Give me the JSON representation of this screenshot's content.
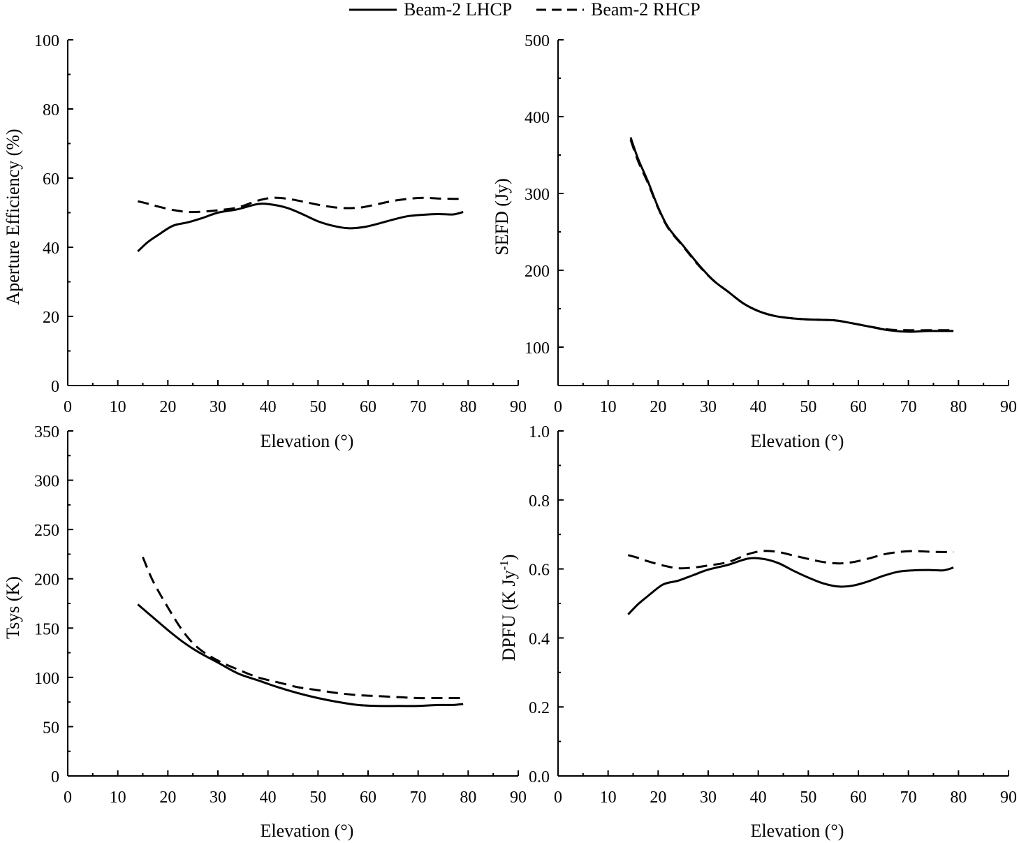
{
  "legend": {
    "series": [
      {
        "name": "Beam-2 LHCP",
        "style": "solid"
      },
      {
        "name": "Beam-2 RHCP",
        "style": "dashed"
      }
    ]
  },
  "chart_data": [
    {
      "id": "aperture-efficiency",
      "type": "line",
      "title": "",
      "xlabel": "Elevation (°)",
      "ylabel": "Aperture Efficiency (%)",
      "xlim": [
        0,
        90
      ],
      "ylim": [
        0,
        100
      ],
      "xticks": [
        0,
        10,
        20,
        30,
        40,
        50,
        60,
        70,
        80,
        90
      ],
      "yticks": [
        0,
        20,
        40,
        60,
        80,
        100
      ],
      "x": [
        14,
        16,
        18,
        21,
        24,
        27,
        30,
        34,
        38,
        41,
        44,
        47,
        50,
        53,
        56,
        59,
        62,
        65,
        68,
        71,
        74,
        77,
        79
      ],
      "series": [
        {
          "name": "Beam-2 LHCP",
          "style": "solid",
          "values": [
            38.8,
            41.5,
            43.5,
            46.2,
            47.2,
            48.5,
            50.0,
            51.0,
            52.5,
            52.3,
            51.3,
            49.5,
            47.5,
            46.2,
            45.5,
            45.8,
            46.8,
            48.0,
            49.0,
            49.4,
            49.6,
            49.5,
            50.2
          ]
        },
        {
          "name": "Beam-2 RHCP",
          "style": "dashed",
          "values": [
            53.3,
            52.6,
            51.8,
            50.8,
            50.2,
            50.3,
            50.7,
            51.5,
            53.5,
            54.3,
            54.0,
            53.2,
            52.3,
            51.6,
            51.3,
            51.6,
            52.5,
            53.4,
            54.0,
            54.3,
            54.1,
            54.0,
            54.0
          ]
        }
      ]
    },
    {
      "id": "sefd",
      "type": "line",
      "title": "",
      "xlabel": "Elevation (°)",
      "ylabel": "SEFD (Jy)",
      "xlim": [
        0,
        90
      ],
      "ylim": [
        50,
        500
      ],
      "xticks": [
        0,
        10,
        20,
        30,
        40,
        50,
        60,
        70,
        80,
        90
      ],
      "yticks": [
        100,
        200,
        300,
        400,
        500
      ],
      "x": [
        14.5,
        16,
        18,
        20,
        22,
        25,
        28,
        31,
        34,
        37,
        40,
        43,
        46,
        50,
        55,
        58,
        62,
        66,
        70,
        74,
        77,
        79
      ],
      "series": [
        {
          "name": "Beam-2 LHCP",
          "style": "solid",
          "values": [
            373,
            345,
            315,
            282,
            256,
            232,
            208,
            187,
            172,
            157,
            147,
            141,
            138,
            136,
            135,
            132,
            127,
            122,
            120,
            121,
            121,
            121
          ]
        },
        {
          "name": "Beam-2 RHCP",
          "style": "dashed",
          "values": [
            370,
            342,
            313,
            281,
            255,
            231,
            207,
            187,
            172,
            157,
            147,
            141,
            138,
            136,
            135,
            132,
            127,
            123,
            122,
            122,
            122,
            122
          ]
        }
      ]
    },
    {
      "id": "tsys",
      "type": "line",
      "title": "",
      "xlabel": "Elevation (°)",
      "ylabel": "Tsys (K)",
      "xlim": [
        0,
        90
      ],
      "ylim": [
        0,
        350
      ],
      "xticks": [
        0,
        10,
        20,
        30,
        40,
        50,
        60,
        70,
        80,
        90
      ],
      "yticks": [
        0,
        50,
        100,
        150,
        200,
        250,
        300,
        350
      ],
      "series": [
        {
          "name": "Beam-2 LHCP",
          "style": "solid",
          "x": [
            14,
            17,
            20,
            23,
            26,
            30,
            34,
            38,
            42,
            46,
            50,
            54,
            58,
            62,
            66,
            70,
            74,
            77,
            79
          ],
          "values": [
            174,
            161,
            148,
            136,
            126,
            115,
            104,
            97,
            90,
            84,
            79,
            75,
            72,
            71,
            71,
            71,
            72,
            72,
            73
          ]
        },
        {
          "name": "Beam-2 RHCP",
          "style": "dashed",
          "x": [
            15,
            17,
            20,
            23,
            26,
            30,
            34,
            38,
            42,
            46,
            50,
            54,
            58,
            62,
            66,
            70,
            74,
            77,
            79
          ],
          "values": [
            222,
            198,
            171,
            147,
            130,
            117,
            108,
            100,
            95,
            90,
            87,
            84,
            82,
            81,
            80,
            79,
            79,
            79,
            79
          ]
        }
      ]
    },
    {
      "id": "dpfu",
      "type": "line",
      "title": "",
      "xlabel": "Elevation (°)",
      "ylabel": "DPFU (K Jy",
      "ylabel_superscript": "-1",
      "ylabel_suffix": ")",
      "xlim": [
        0,
        90
      ],
      "ylim": [
        0,
        1
      ],
      "xticks": [
        0,
        10,
        20,
        30,
        40,
        50,
        60,
        70,
        80,
        90
      ],
      "yticks": [
        0.0,
        0.2,
        0.4,
        0.6,
        0.8,
        1.0
      ],
      "ytick_labels": [
        "0.0",
        "0.2",
        "0.4",
        "0.6",
        "0.8",
        "1.0"
      ],
      "x": [
        14,
        16,
        18,
        21,
        24,
        27,
        30,
        34,
        38,
        41,
        44,
        47,
        50,
        53,
        56,
        59,
        62,
        65,
        68,
        71,
        74,
        77,
        79
      ],
      "series": [
        {
          "name": "Beam-2 LHCP",
          "style": "solid",
          "values": [
            0.468,
            0.498,
            0.522,
            0.555,
            0.566,
            0.582,
            0.598,
            0.612,
            0.63,
            0.629,
            0.617,
            0.595,
            0.575,
            0.558,
            0.549,
            0.552,
            0.564,
            0.58,
            0.592,
            0.596,
            0.597,
            0.596,
            0.604
          ]
        },
        {
          "name": "Beam-2 RHCP",
          "style": "dashed",
          "values": [
            0.64,
            0.632,
            0.622,
            0.61,
            0.602,
            0.604,
            0.61,
            0.62,
            0.643,
            0.652,
            0.649,
            0.639,
            0.629,
            0.62,
            0.616,
            0.62,
            0.63,
            0.642,
            0.649,
            0.652,
            0.65,
            0.649,
            0.649
          ]
        }
      ]
    }
  ]
}
